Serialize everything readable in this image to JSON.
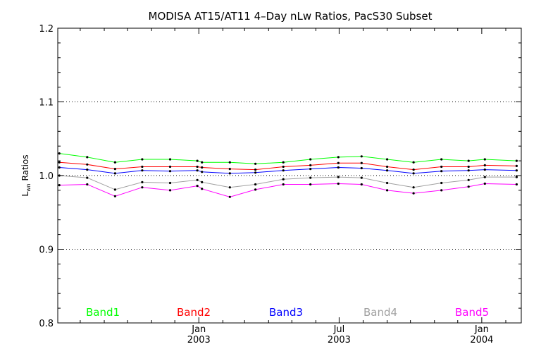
{
  "chart_data": {
    "type": "line",
    "title": "MODISA AT15/AT11 4–Day nLw Ratios, PacS30 Subset",
    "ylabel": {
      "main": "L",
      "sub": "wn",
      "rest": " Ratios"
    },
    "ylim": [
      0.8,
      1.2
    ],
    "y_ticks": [
      "0.8",
      "0.9",
      "1.0",
      "1.1",
      "1.2"
    ],
    "y_gridlines": [
      0.9,
      1.0,
      1.1
    ],
    "x_ticks": [
      {
        "line1": "Jan",
        "line2": "2003",
        "date": "2003-01-01"
      },
      {
        "line1": "Jul",
        "line2": "2003",
        "date": "2003-07-01"
      },
      {
        "line1": "Jan",
        "line2": "2004",
        "date": "2004-01-01"
      }
    ],
    "xlim": [
      "2002-07-03",
      "2004-02-21"
    ],
    "x": [
      "2002-07-05",
      "2002-08-10",
      "2002-09-15",
      "2002-10-20",
      "2002-11-25",
      "2002-12-30",
      "2003-01-05",
      "2003-02-10",
      "2003-03-15",
      "2003-04-20",
      "2003-05-25",
      "2003-06-30",
      "2003-07-30",
      "2003-09-01",
      "2003-10-05",
      "2003-11-10",
      "2003-12-15",
      "2004-01-05",
      "2004-02-15"
    ],
    "series": [
      {
        "name": "Band1",
        "color": "#00ff00",
        "values": [
          1.03,
          1.025,
          1.018,
          1.022,
          1.022,
          1.02,
          1.018,
          1.018,
          1.016,
          1.018,
          1.022,
          1.025,
          1.026,
          1.022,
          1.018,
          1.022,
          1.02,
          1.022,
          1.02
        ]
      },
      {
        "name": "Band2",
        "color": "#ff0000",
        "values": [
          1.018,
          1.015,
          1.009,
          1.012,
          1.012,
          1.012,
          1.011,
          1.009,
          1.008,
          1.012,
          1.014,
          1.017,
          1.017,
          1.012,
          1.008,
          1.012,
          1.012,
          1.014,
          1.013
        ]
      },
      {
        "name": "Band3",
        "color": "#0000ff",
        "values": [
          1.011,
          1.008,
          1.003,
          1.007,
          1.006,
          1.007,
          1.005,
          1.003,
          1.004,
          1.007,
          1.009,
          1.011,
          1.01,
          1.007,
          1.003,
          1.006,
          1.007,
          1.008,
          1.007
        ]
      },
      {
        "name": "Band4",
        "color": "#a0a0a0",
        "values": [
          1.0,
          0.997,
          0.981,
          0.991,
          0.99,
          0.994,
          0.991,
          0.984,
          0.988,
          0.995,
          0.997,
          0.998,
          0.997,
          0.99,
          0.984,
          0.99,
          0.994,
          0.998,
          0.998
        ]
      },
      {
        "name": "Band5",
        "color": "#ff00ff",
        "values": [
          0.987,
          0.988,
          0.972,
          0.984,
          0.98,
          0.986,
          0.982,
          0.971,
          0.981,
          0.988,
          0.988,
          0.989,
          0.988,
          0.98,
          0.976,
          0.98,
          0.985,
          0.989,
          0.988
        ]
      }
    ],
    "legend": [
      "Band1",
      "Band2",
      "Band3",
      "Band4",
      "Band5"
    ],
    "legend_placement": "bottom, inside plot"
  }
}
